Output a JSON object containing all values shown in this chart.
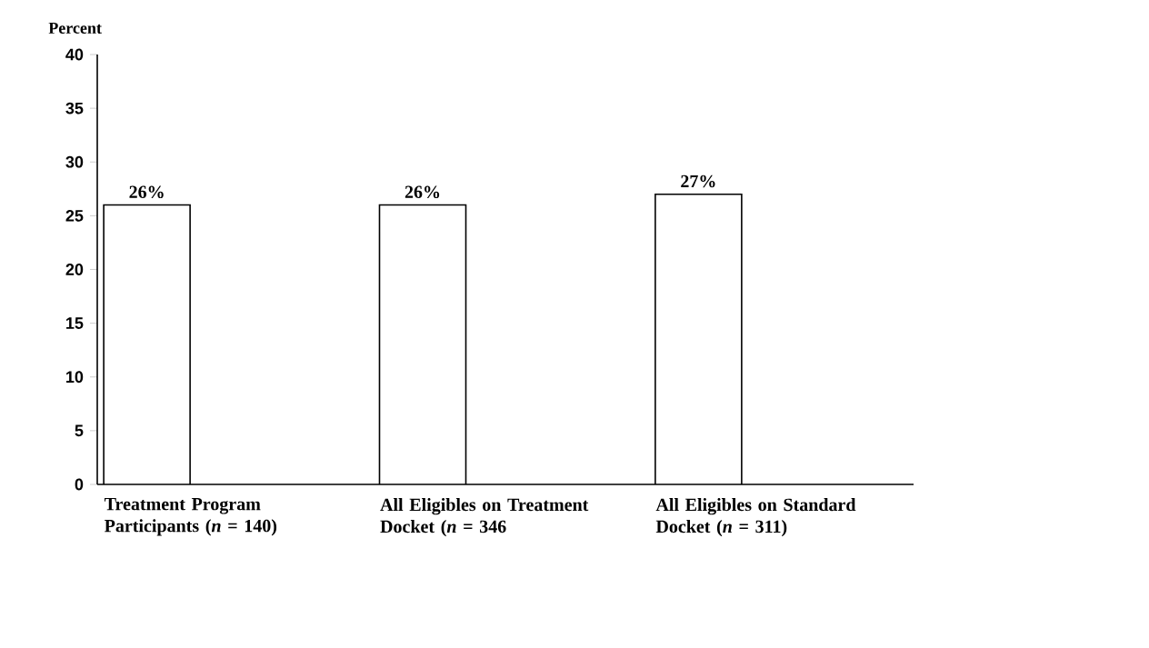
{
  "chart_data": {
    "type": "bar",
    "ylabel": "Percent",
    "categories": [
      "Treatment Program Participants (*n* = 140)",
      "All Eligibles on Treatment Docket (*n* = 346",
      "All Eligibles on Standard Docket (*n* = 311)"
    ],
    "values": [
      26,
      26,
      27
    ],
    "value_labels": [
      "26%",
      "26%",
      "27%"
    ],
    "color": "#ffffff",
    "ylim": [
      0,
      40
    ],
    "yticks": [
      0,
      5,
      10,
      15,
      20,
      25,
      30,
      35,
      40
    ],
    "grid": false
  }
}
